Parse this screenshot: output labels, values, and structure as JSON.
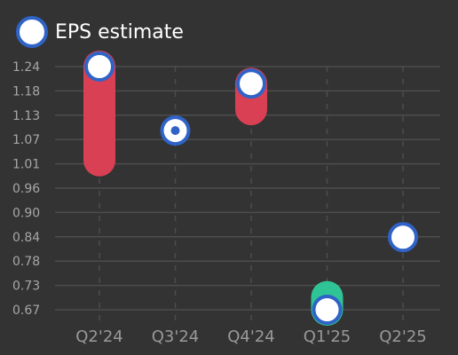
{
  "legend": {
    "label": "EPS estimate"
  },
  "chart_data": {
    "type": "range-dot",
    "title": "",
    "xlabel": "",
    "ylabel": "",
    "categories": [
      "Q2'24",
      "Q3'24",
      "Q4'24",
      "Q1'25",
      "Q2'25"
    ],
    "y_ticks": [
      "1.24",
      "1.18",
      "1.13",
      "1.07",
      "1.01",
      "0.96",
      "0.90",
      "0.84",
      "0.78",
      "0.73",
      "0.67"
    ],
    "ylim": [
      0.67,
      1.24
    ],
    "series": [
      {
        "name": "EPS estimate",
        "values": [
          1.24,
          1.09,
          1.2,
          0.67,
          0.84
        ]
      }
    ],
    "ranges": [
      {
        "category": "Q2'24",
        "low": 1.02,
        "high": 1.24,
        "direction": "miss"
      },
      {
        "category": "Q3'24",
        "low": 1.09,
        "high": 1.09,
        "direction": "match"
      },
      {
        "category": "Q4'24",
        "low": 1.14,
        "high": 1.2,
        "direction": "miss"
      },
      {
        "category": "Q1'25",
        "low": 0.67,
        "high": 0.7,
        "direction": "beat"
      },
      {
        "category": "Q2'25",
        "low": null,
        "high": null,
        "direction": "none"
      }
    ],
    "colors": {
      "background": "#333333",
      "miss": "#d94054",
      "beat": "#2fc495",
      "marker_fill": "#ffffff",
      "marker_stroke": "#2f63c7",
      "grid": "#4d4d4d",
      "tick_text": "#a6a6a6",
      "category_text": "#999999"
    },
    "grid": true,
    "legend_position": "top-left"
  }
}
